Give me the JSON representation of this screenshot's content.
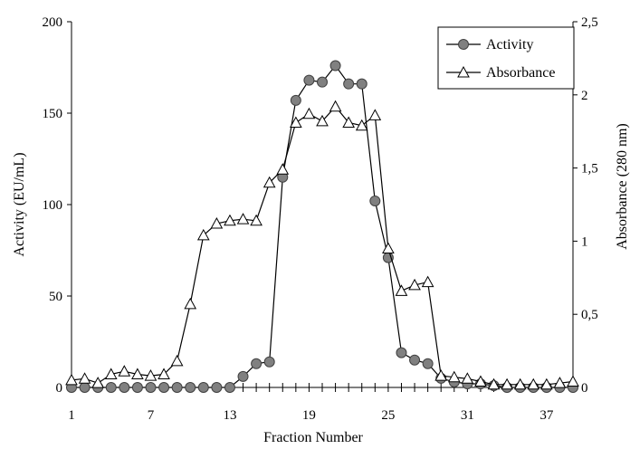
{
  "chart_data": {
    "type": "line",
    "xlabel": "Fraction Number",
    "ylabel": "Activity (EU/mL)",
    "y2label": "Absorbance (280 nm)",
    "xlim": [
      1,
      39
    ],
    "ylim": [
      0,
      200
    ],
    "y2lim": [
      0,
      2.5
    ],
    "x_tick_labels": [
      "1",
      "7",
      "13",
      "19",
      "25",
      "31",
      "37"
    ],
    "y_tick_labels": [
      "0",
      "50",
      "100",
      "150",
      "200"
    ],
    "y2_tick_labels": [
      "0",
      "0,5",
      "1",
      "1,5",
      "2",
      "2,5"
    ],
    "grid": false,
    "legend_position": "top-right",
    "series": [
      {
        "name": "Activity",
        "axis": "left",
        "marker": "circle",
        "marker_color": "#808080",
        "x": [
          1,
          2,
          3,
          4,
          5,
          6,
          7,
          8,
          9,
          10,
          11,
          12,
          13,
          14,
          15,
          16,
          17,
          18,
          19,
          20,
          21,
          22,
          23,
          24,
          25,
          26,
          27,
          28,
          29,
          30,
          31,
          32,
          33,
          34,
          35,
          36,
          37,
          38,
          39
        ],
        "values": [
          0,
          0,
          0,
          0,
          0,
          0,
          0,
          0,
          0,
          0,
          0,
          0,
          0,
          6,
          13,
          14,
          115,
          157,
          168,
          167,
          176,
          166,
          166,
          102,
          71,
          19,
          15,
          13,
          5,
          3,
          2,
          2,
          1,
          0,
          0,
          0,
          0,
          0,
          0
        ]
      },
      {
        "name": "Absorbance",
        "axis": "right",
        "marker": "triangle",
        "marker_color": "#ffffff",
        "x": [
          1,
          2,
          3,
          4,
          5,
          6,
          7,
          8,
          9,
          10,
          11,
          12,
          13,
          14,
          15,
          16,
          17,
          18,
          19,
          20,
          21,
          22,
          23,
          24,
          25,
          26,
          27,
          28,
          29,
          30,
          31,
          32,
          33,
          34,
          35,
          36,
          37,
          38,
          39
        ],
        "values": [
          0.05,
          0.06,
          0.03,
          0.09,
          0.11,
          0.09,
          0.08,
          0.09,
          0.18,
          0.57,
          1.04,
          1.12,
          1.14,
          1.15,
          1.14,
          1.4,
          1.49,
          1.81,
          1.87,
          1.82,
          1.92,
          1.81,
          1.79,
          1.86,
          0.95,
          0.66,
          0.7,
          0.72,
          0.08,
          0.07,
          0.06,
          0.04,
          0.02,
          0.02,
          0.02,
          0.02,
          0.02,
          0.03,
          0.04
        ]
      }
    ]
  }
}
